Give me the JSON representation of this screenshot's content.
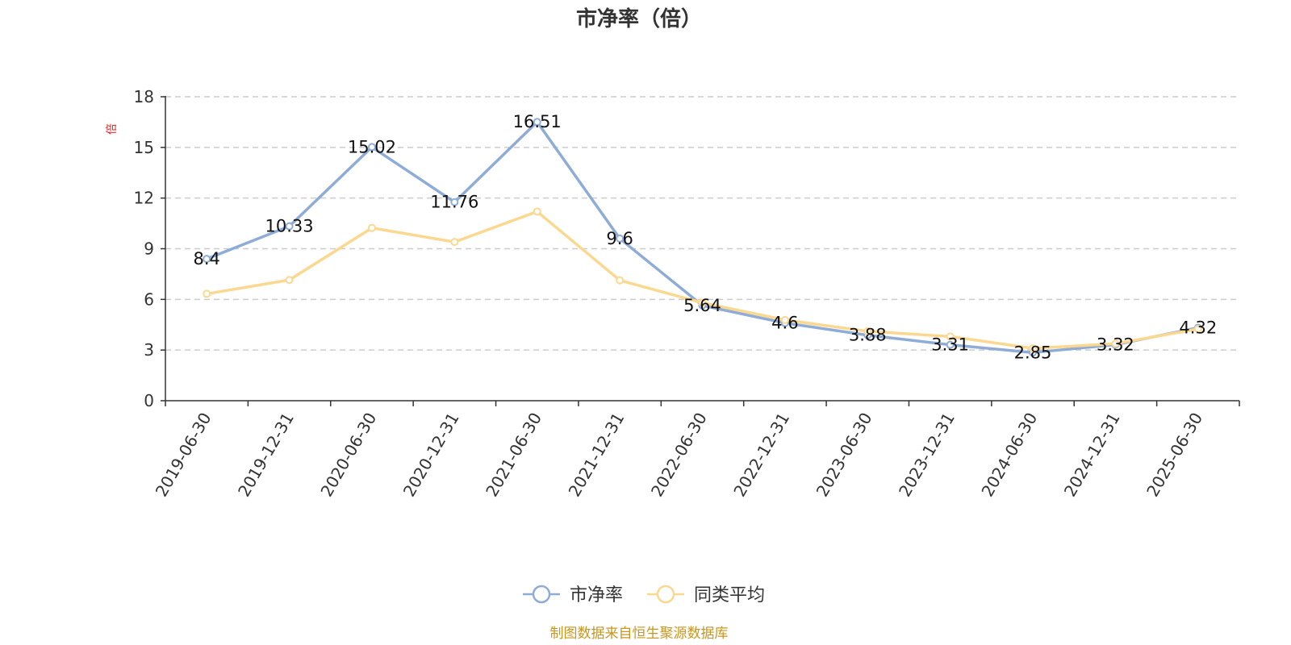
{
  "chart_data": {
    "type": "line",
    "title": "市净率（倍）",
    "ylabel": "倍",
    "xlabel": "",
    "categories": [
      "2019-06-30",
      "2019-12-31",
      "2020-06-30",
      "2020-12-31",
      "2021-06-30",
      "2021-12-31",
      "2022-06-30",
      "2022-12-31",
      "2023-06-30",
      "2023-12-31",
      "2024-06-30",
      "2024-12-31",
      "2025-06-30"
    ],
    "ylim": [
      0,
      18
    ],
    "yticks": [
      "0",
      "3",
      "6",
      "9",
      "12",
      "15",
      "18"
    ],
    "grid": true,
    "legend_position": "bottom-center",
    "series": [
      {
        "name": "市净率",
        "color": "#8eacd6",
        "values": [
          8.4,
          10.33,
          15.02,
          11.76,
          16.51,
          9.6,
          5.64,
          4.6,
          3.88,
          3.31,
          2.85,
          3.32,
          4.32
        ],
        "labels": [
          "8.4",
          "10.33",
          "15.02",
          "11.76",
          "16.51",
          "9.6",
          "5.64",
          "4.6",
          "3.88",
          "3.31",
          "2.85",
          "3.32",
          "4.32"
        ]
      },
      {
        "name": "同类平均",
        "color": "#fbd890",
        "values": [
          6.33,
          7.15,
          10.23,
          9.4,
          11.2,
          7.13,
          5.8,
          4.78,
          4.11,
          3.8,
          3.1,
          3.38,
          4.25
        ]
      }
    ]
  },
  "source": "制图数据来自恒生聚源数据库"
}
